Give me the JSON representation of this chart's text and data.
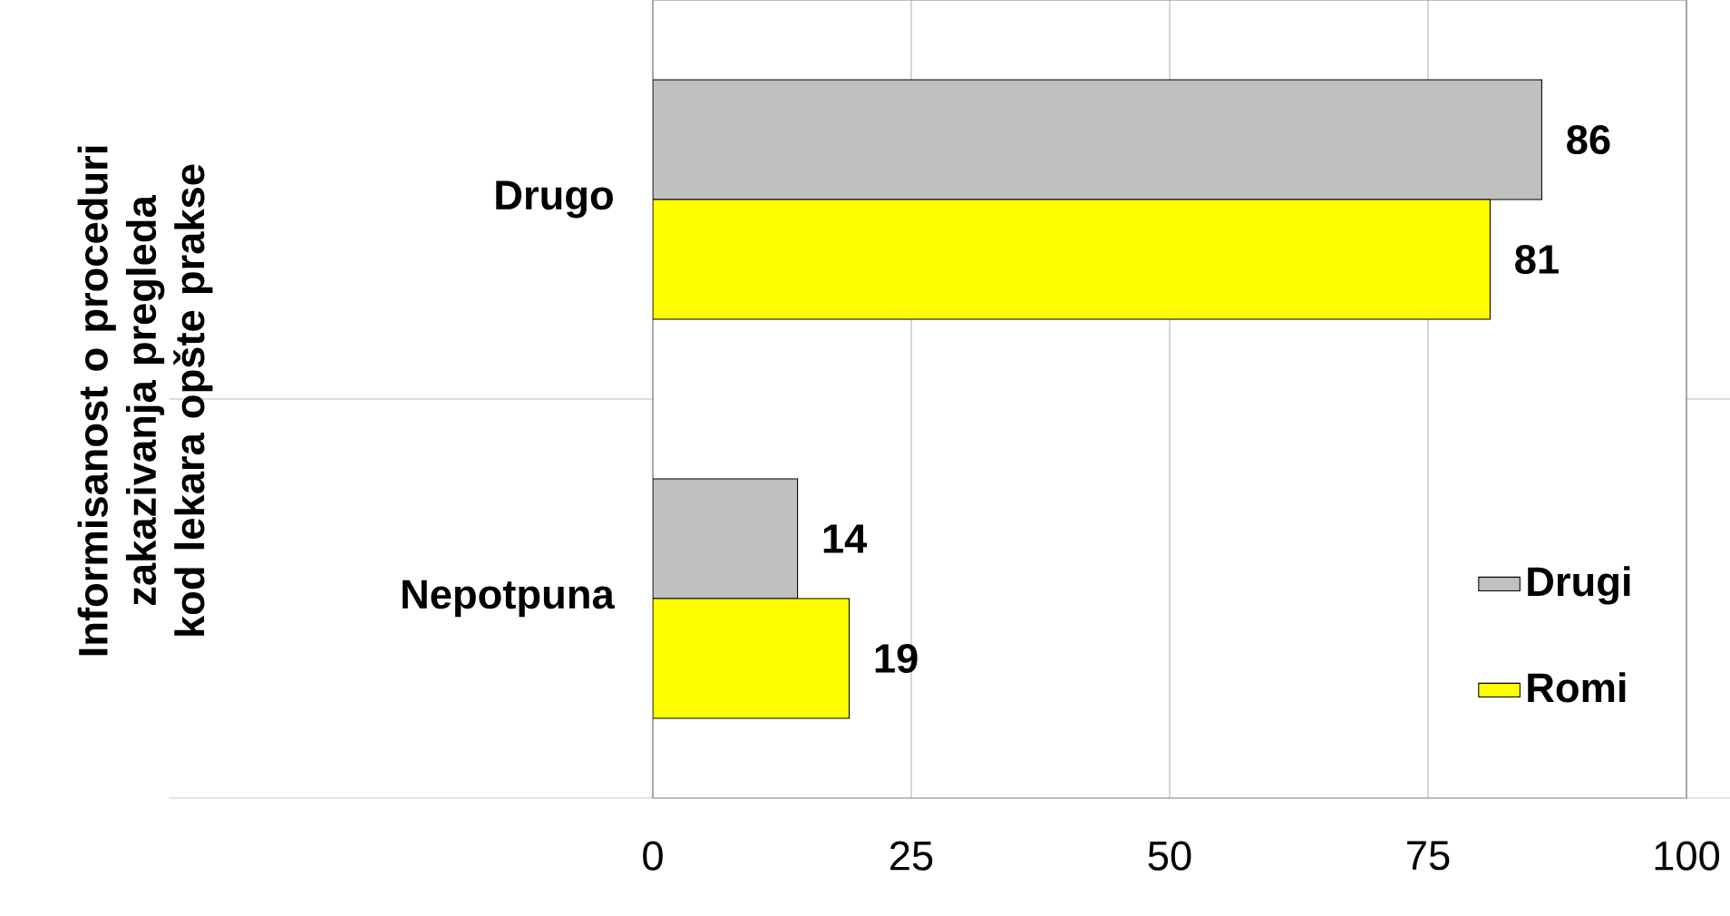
{
  "chart_data": {
    "type": "bar",
    "orientation": "horizontal",
    "ylabel": "Informisanost o proceduri zakazivanja pregleda kod lekara opšte prakse",
    "categories": [
      "Drugo",
      "Nepotpuna"
    ],
    "series": [
      {
        "name": "Drugi",
        "color": "#c0c0c0",
        "values": [
          86,
          14
        ]
      },
      {
        "name": "Romi",
        "color": "#ffff00",
        "values": [
          81,
          19
        ]
      }
    ],
    "xlim": [
      0,
      100
    ],
    "xticks": [
      0,
      25,
      50,
      75,
      100
    ],
    "grid": "x",
    "legend": "bottom right",
    "data_labels": true
  }
}
